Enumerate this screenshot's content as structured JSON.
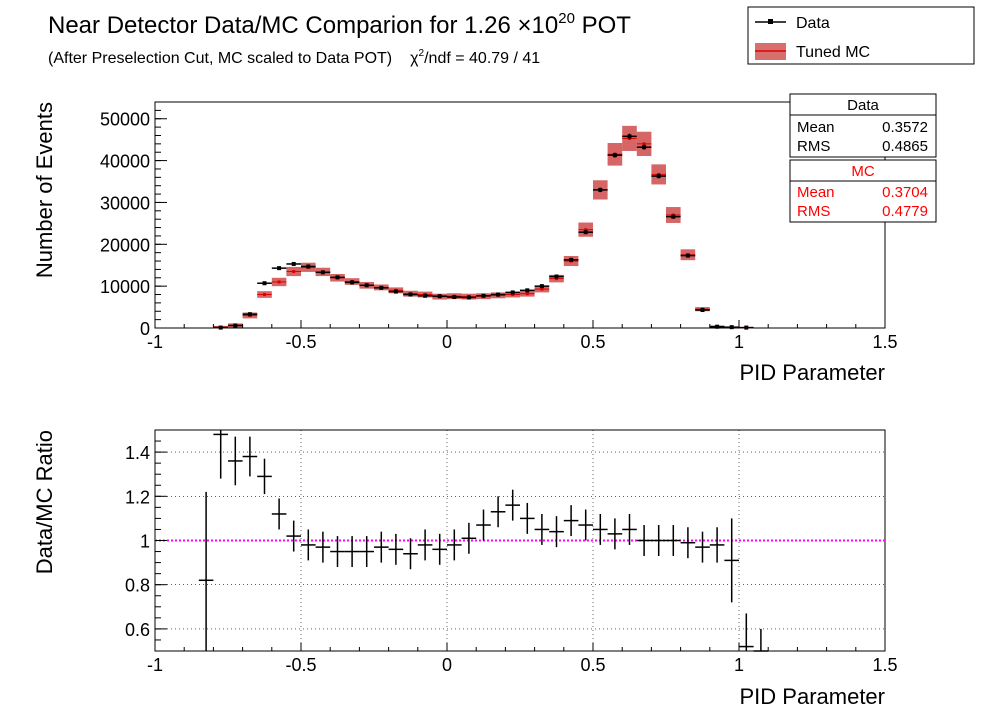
{
  "title": {
    "main": "Near Detector Data/MC Comparion for 1.26 ",
    "times": "×10",
    "exp": "20",
    "unit": " POT",
    "subtitle_a": "(After Preselection Cut, MC scaled to Data POT)",
    "chi_symbol": "χ",
    "chi_exp": "2",
    "chi_rest": "/ndf = 40.79 / 41"
  },
  "legend": {
    "entries": [
      {
        "label": "Data",
        "color": "#000000"
      },
      {
        "label": "Tuned MC",
        "color": "#cc0000"
      }
    ]
  },
  "stats": {
    "data": {
      "header": "Data",
      "rows": [
        {
          "k": "Mean",
          "v": "0.3572"
        },
        {
          "k": "RMS",
          "v": "0.4865"
        }
      ]
    },
    "mc": {
      "header": "MC",
      "rows": [
        {
          "k": "Mean",
          "v": "0.3704"
        },
        {
          "k": "RMS",
          "v": "0.4779"
        }
      ]
    }
  },
  "colors": {
    "data": "#000000",
    "mc_band": "#c83232",
    "mc_point": "#e00000",
    "ratio_line": "#ff00ff",
    "grid": "#000000"
  },
  "chart_data": [
    {
      "type": "bar",
      "xlabel": "PID Parameter",
      "ylabel": "Number of Events",
      "xlim": [
        -1,
        1.5
      ],
      "ylim": [
        0,
        54000
      ],
      "xticks": [
        -1,
        -0.5,
        0,
        0.5,
        1,
        1.5
      ],
      "xtick_labels": [
        "-1",
        "-0.5",
        "0",
        "0.5",
        "1",
        "1.5"
      ],
      "yticks": [
        0,
        10000,
        20000,
        30000,
        40000,
        50000
      ],
      "ytick_labels": [
        "0",
        "10000",
        "20000",
        "30000",
        "40000",
        "50000"
      ],
      "grid": false,
      "bin_width": 0.05,
      "x": [
        -0.775,
        -0.725,
        -0.675,
        -0.625,
        -0.575,
        -0.525,
        -0.475,
        -0.425,
        -0.375,
        -0.325,
        -0.275,
        -0.225,
        -0.175,
        -0.125,
        -0.075,
        -0.025,
        0.025,
        0.075,
        0.125,
        0.175,
        0.225,
        0.275,
        0.325,
        0.375,
        0.425,
        0.475,
        0.525,
        0.575,
        0.625,
        0.675,
        0.725,
        0.775,
        0.825,
        0.875,
        0.925,
        0.975,
        1.025,
        1.075,
        1.125,
        1.175
      ],
      "series": [
        {
          "name": "Data",
          "values": [
            100,
            600,
            3300,
            10700,
            14300,
            15300,
            14700,
            13300,
            12100,
            10900,
            10200,
            9600,
            8700,
            8000,
            7700,
            7600,
            7400,
            7300,
            7700,
            8000,
            8500,
            9000,
            10000,
            12300,
            16300,
            22900,
            33000,
            41300,
            45800,
            43200,
            36300,
            26600,
            17300,
            4300,
            300,
            200,
            100,
            0,
            0,
            0
          ]
        },
        {
          "name": "Tuned MC",
          "values": [
            200,
            600,
            3000,
            8000,
            11000,
            13500,
            14500,
            13400,
            12000,
            11100,
            10200,
            9700,
            9000,
            8200,
            8000,
            7500,
            7600,
            7500,
            7600,
            7800,
            8000,
            8200,
            9300,
            11800,
            16000,
            23500,
            33000,
            41500,
            45300,
            44000,
            36700,
            27000,
            17500,
            4500,
            400,
            200,
            100,
            0,
            0,
            0
          ],
          "band": [
            300,
            500,
            700,
            800,
            1000,
            1100,
            1100,
            1000,
            900,
            800,
            800,
            700,
            700,
            700,
            700,
            700,
            700,
            700,
            700,
            700,
            700,
            700,
            800,
            900,
            1200,
            1700,
            2300,
            2700,
            3000,
            2900,
            2400,
            1900,
            1300,
            500,
            200,
            100,
            100,
            0,
            0,
            0
          ]
        }
      ]
    },
    {
      "type": "scatter",
      "xlabel": "PID Parameter",
      "ylabel": "Data/MC Ratio",
      "xlim": [
        -1,
        1.5
      ],
      "ylim": [
        0.5,
        1.5
      ],
      "xticks": [
        -1,
        -0.5,
        0,
        0.5,
        1,
        1.5
      ],
      "xtick_labels": [
        "-1",
        "-0.5",
        "0",
        "0.5",
        "1",
        "1.5"
      ],
      "yticks": [
        0.6,
        0.8,
        1.0,
        1.2,
        1.4
      ],
      "ytick_labels": [
        "0.6",
        "0.8",
        "1",
        "1.2",
        "1.4"
      ],
      "grid": true,
      "reference_line": 1.0,
      "bin_width": 0.05,
      "series": [
        {
          "name": "Data/MC Ratio",
          "x": [
            -0.825,
            -0.775,
            -0.725,
            -0.675,
            -0.625,
            -0.575,
            -0.525,
            -0.475,
            -0.425,
            -0.375,
            -0.325,
            -0.275,
            -0.225,
            -0.175,
            -0.125,
            -0.075,
            -0.025,
            0.025,
            0.075,
            0.125,
            0.175,
            0.225,
            0.275,
            0.325,
            0.375,
            0.425,
            0.475,
            0.525,
            0.575,
            0.625,
            0.675,
            0.725,
            0.775,
            0.825,
            0.875,
            0.925,
            0.975,
            1.025,
            1.075
          ],
          "values": [
            0.82,
            1.48,
            1.36,
            1.38,
            1.29,
            1.12,
            1.02,
            0.98,
            0.97,
            0.95,
            0.95,
            0.95,
            0.97,
            0.96,
            0.94,
            0.98,
            0.96,
            0.98,
            1.01,
            1.07,
            1.13,
            1.16,
            1.1,
            1.05,
            1.04,
            1.09,
            1.07,
            1.05,
            1.03,
            1.05,
            1.0,
            1.0,
            1.0,
            0.99,
            0.97,
            0.98,
            0.91,
            0.52,
            0.5
          ],
          "errors": [
            0.4,
            0.2,
            0.11,
            0.09,
            0.08,
            0.07,
            0.07,
            0.07,
            0.07,
            0.07,
            0.07,
            0.07,
            0.07,
            0.07,
            0.07,
            0.07,
            0.07,
            0.07,
            0.07,
            0.07,
            0.07,
            0.07,
            0.07,
            0.07,
            0.07,
            0.07,
            0.07,
            0.07,
            0.07,
            0.07,
            0.07,
            0.07,
            0.07,
            0.07,
            0.07,
            0.08,
            0.19,
            0.15,
            0.1
          ]
        }
      ]
    }
  ]
}
